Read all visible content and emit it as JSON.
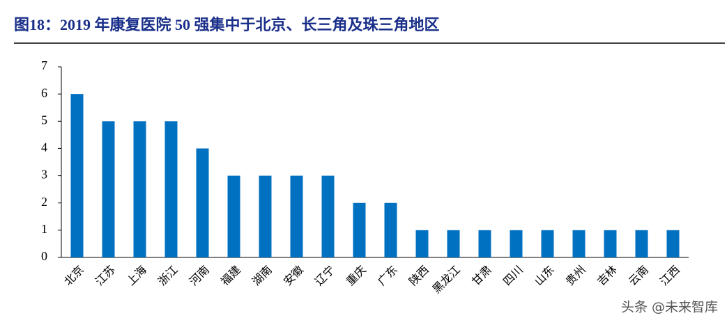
{
  "chart_data": {
    "type": "bar",
    "title": "图18：2019 年康复医院 50 强集中于北京、长三角及珠三角地区",
    "categories": [
      "北京",
      "江苏",
      "上海",
      "浙江",
      "河南",
      "福建",
      "湖南",
      "安徽",
      "辽宁",
      "重庆",
      "广东",
      "陕西",
      "黑龙江",
      "甘肃",
      "四川",
      "山东",
      "贵州",
      "吉林",
      "云南",
      "江西"
    ],
    "values": [
      6,
      5,
      5,
      5,
      4,
      3,
      3,
      3,
      3,
      2,
      2,
      1,
      1,
      1,
      1,
      1,
      1,
      1,
      1,
      1
    ],
    "color": "#0070c0",
    "ylim": [
      0,
      7
    ],
    "yticks": [
      0,
      1,
      2,
      3,
      4,
      5,
      6,
      7
    ],
    "grid": false,
    "watermark": "头条 @未来智库"
  }
}
